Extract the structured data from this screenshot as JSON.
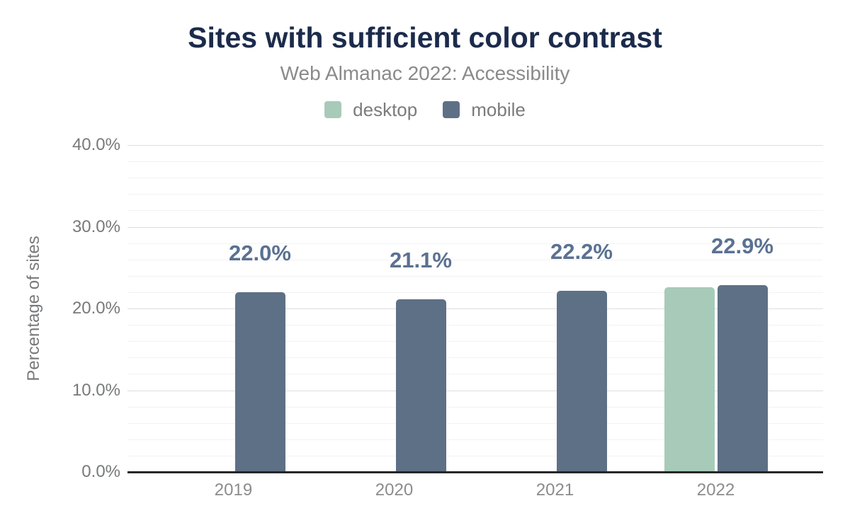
{
  "header": {
    "title": "Sites with sufficient color contrast",
    "subtitle": "Web Almanac 2022: Accessibility"
  },
  "legend": {
    "items": [
      {
        "label": "desktop",
        "color": "#a8cab9"
      },
      {
        "label": "mobile",
        "color": "#5e7086"
      }
    ]
  },
  "chart_data": {
    "type": "bar",
    "title": "Sites with sufficient color contrast",
    "subtitle": "Web Almanac 2022: Accessibility",
    "categories": [
      "2019",
      "2020",
      "2021",
      "2022"
    ],
    "series": [
      {
        "name": "desktop",
        "color": "#a8cab9",
        "values": [
          null,
          null,
          null,
          22.6
        ]
      },
      {
        "name": "mobile",
        "color": "#5e7086",
        "values": [
          22.0,
          21.1,
          22.2,
          22.9
        ]
      }
    ],
    "data_labels": [
      "22.0%",
      "21.1%",
      "22.2%",
      "22.9%"
    ],
    "xlabel": "",
    "ylabel": "Percentage of sites",
    "ylim": [
      0,
      40
    ],
    "y_major_step": 10,
    "y_minor_step": 2,
    "y_ticks": [
      "0.0%",
      "10.0%",
      "20.0%",
      "30.0%",
      "40.0%"
    ],
    "grid": "horizontal-minor-and-major",
    "legend_position": "top",
    "colors": {
      "title": "#1b2b4b",
      "subtitle": "#8a8a8a",
      "legend_text": "#7b7b7b",
      "tick_text": "#77797b",
      "x_tick_text": "#8c8c8c",
      "axis_line": "#262626",
      "grid_major": "#dedede",
      "grid_minor": "#f2f2f2",
      "data_label": "#5a7191",
      "desktop": "#a8cab9",
      "mobile": "#5e7086"
    }
  }
}
